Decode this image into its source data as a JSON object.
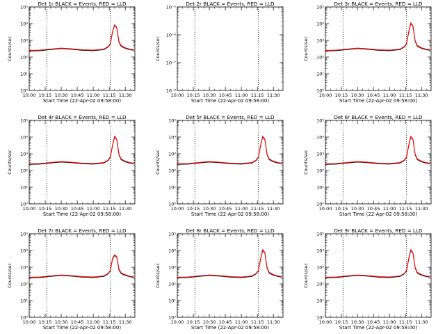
{
  "chart_data": {
    "type": "line",
    "xlabel": "Start Time (22-Apr-02 09:58:00)",
    "ylabel": "Counts/sec",
    "x_tick_labels": [
      "10:00",
      "10:15",
      "10:30",
      "10:45",
      "11:00",
      "11:15",
      "11:30"
    ],
    "x_ticks_minutes": [
      0,
      15,
      30,
      45,
      60,
      75,
      90
    ],
    "xlim_minutes": [
      0,
      99
    ],
    "log_scale_y": true,
    "vertical_markers_minutes": [
      16.5,
      76
    ],
    "colors": {
      "events": "#000000",
      "lld": "#ff0000"
    },
    "panels": [
      {
        "title": "Det 1r BLACK = Events, RED = LLD",
        "ylim_exp": [
          0,
          5
        ],
        "y_tick_labels": [
          "10⁰",
          "10¹",
          "10²",
          "10³",
          "10⁴",
          "10⁵"
        ],
        "series": [
          {
            "name": "Events",
            "x": [
              0,
              10,
              20,
              30,
              40,
              50,
              60,
              70,
              74,
              76,
              78,
              80,
              82,
              84,
              86,
              88,
              90,
              94,
              98
            ],
            "y": [
              230,
              240,
              280,
              320,
              290,
              250,
              240,
              280,
              400,
              600,
              3000,
              8000,
              5500,
              800,
              450,
              380,
              330,
              280,
              250
            ]
          },
          {
            "name": "LLD",
            "x": [
              0,
              10,
              20,
              30,
              40,
              50,
              60,
              70,
              74,
              76,
              78,
              80,
              82,
              84,
              86,
              88,
              90,
              94,
              98
            ],
            "y": [
              250,
              260,
              300,
              340,
              310,
              270,
              260,
              300,
              430,
              650,
              3300,
              8500,
              6000,
              900,
              500,
              420,
              360,
              300,
              270
            ]
          }
        ]
      },
      {
        "title": "Det 2r BLACK = Events, RED = LLD",
        "ylim_exp": [
          -8,
          -5
        ],
        "y_tick_labels": [
          "10⁻⁸",
          "10⁻⁷",
          "10⁻⁶",
          "10⁻⁵"
        ],
        "series": [
          {
            "name": "Events",
            "x": [],
            "y": []
          },
          {
            "name": "LLD",
            "x": [],
            "y": []
          }
        ]
      },
      {
        "title": "Det 3r BLACK = Events, RED = LLD",
        "ylim_exp": [
          0,
          5
        ],
        "y_tick_labels": [
          "10⁰",
          "10¹",
          "10²",
          "10³",
          "10⁴",
          "10⁵"
        ],
        "series": [
          {
            "name": "Events",
            "x": [
              0,
              10,
              20,
              30,
              40,
              50,
              60,
              70,
              74,
              76,
              78,
              80,
              82,
              84,
              86,
              88,
              90,
              94,
              98
            ],
            "y": [
              230,
              240,
              280,
              320,
              290,
              250,
              240,
              280,
              400,
              600,
              3000,
              10000,
              7000,
              900,
              450,
              380,
              330,
              280,
              250
            ]
          },
          {
            "name": "LLD",
            "x": [
              0,
              10,
              20,
              30,
              40,
              50,
              60,
              70,
              74,
              76,
              78,
              80,
              82,
              84,
              86,
              88,
              90,
              94,
              98
            ],
            "y": [
              250,
              260,
              300,
              340,
              310,
              270,
              260,
              300,
              430,
              650,
              3300,
              11000,
              7500,
              1000,
              500,
              420,
              360,
              300,
              270
            ]
          }
        ]
      },
      {
        "title": "Det 4r BLACK = Events, RED = LLD",
        "ylim_exp": [
          0,
          5
        ],
        "y_tick_labels": [
          "10⁰",
          "10¹",
          "10²",
          "10³",
          "10⁴",
          "10⁵"
        ],
        "series": [
          {
            "name": "Events",
            "x": [
              0,
              10,
              20,
              30,
              40,
              50,
              60,
              70,
              74,
              76,
              78,
              80,
              82,
              84,
              86,
              88,
              90,
              94,
              98
            ],
            "y": [
              230,
              240,
              280,
              320,
              290,
              250,
              240,
              280,
              400,
              600,
              3000,
              10000,
              7000,
              900,
              450,
              380,
              330,
              280,
              250
            ]
          },
          {
            "name": "LLD",
            "x": [
              0,
              10,
              20,
              30,
              40,
              50,
              60,
              70,
              74,
              76,
              78,
              80,
              82,
              84,
              86,
              88,
              90,
              94,
              98
            ],
            "y": [
              250,
              260,
              300,
              340,
              310,
              270,
              260,
              300,
              430,
              650,
              3300,
              11000,
              7500,
              1000,
              500,
              420,
              360,
              300,
              270
            ]
          }
        ]
      },
      {
        "title": "Det 5r BLACK = Events, RED = LLD",
        "ylim_exp": [
          0,
          5
        ],
        "y_tick_labels": [
          "10⁰",
          "10¹",
          "10²",
          "10³",
          "10⁴",
          "10⁵"
        ],
        "series": [
          {
            "name": "Events",
            "x": [
              0,
              10,
              20,
              30,
              40,
              50,
              60,
              70,
              74,
              76,
              78,
              80,
              82,
              84,
              86,
              88,
              90,
              94,
              98
            ],
            "y": [
              230,
              240,
              280,
              320,
              290,
              250,
              240,
              280,
              400,
              600,
              3000,
              10000,
              7000,
              900,
              450,
              380,
              330,
              280,
              250
            ]
          },
          {
            "name": "LLD",
            "x": [
              0,
              10,
              20,
              30,
              40,
              50,
              60,
              70,
              74,
              76,
              78,
              80,
              82,
              84,
              86,
              88,
              90,
              94,
              98
            ],
            "y": [
              250,
              260,
              300,
              340,
              310,
              270,
              260,
              300,
              430,
              650,
              3300,
              11000,
              7500,
              1000,
              500,
              420,
              360,
              300,
              270
            ]
          }
        ]
      },
      {
        "title": "Det 6r BLACK = Events, RED = LLD",
        "ylim_exp": [
          0,
          5
        ],
        "y_tick_labels": [
          "10⁰",
          "10¹",
          "10²",
          "10³",
          "10⁴",
          "10⁵"
        ],
        "series": [
          {
            "name": "Events",
            "x": [
              0,
              10,
              20,
              30,
              40,
              50,
              60,
              70,
              74,
              76,
              78,
              80,
              82,
              84,
              86,
              88,
              90,
              94,
              98
            ],
            "y": [
              230,
              240,
              280,
              320,
              290,
              250,
              240,
              280,
              400,
              600,
              3000,
              10000,
              7000,
              900,
              450,
              380,
              330,
              280,
              250
            ]
          },
          {
            "name": "LLD",
            "x": [
              0,
              10,
              20,
              30,
              40,
              50,
              60,
              70,
              74,
              76,
              78,
              80,
              82,
              84,
              86,
              88,
              90,
              94,
              98
            ],
            "y": [
              250,
              260,
              300,
              340,
              310,
              270,
              260,
              300,
              430,
              650,
              3300,
              11000,
              7500,
              1000,
              500,
              420,
              360,
              300,
              270
            ]
          }
        ]
      },
      {
        "title": "Det 7r BLACK = Events, RED = LLD",
        "ylim_exp": [
          0,
          5
        ],
        "y_tick_labels": [
          "10⁰",
          "10¹",
          "10²",
          "10³",
          "10⁴",
          "10⁵"
        ],
        "series": [
          {
            "name": "Events",
            "x": [
              0,
              10,
              20,
              30,
              40,
              50,
              60,
              70,
              74,
              76,
              78,
              80,
              82,
              84,
              86,
              88,
              90,
              94,
              98
            ],
            "y": [
              230,
              240,
              280,
              320,
              290,
              250,
              240,
              280,
              400,
              600,
              3000,
              5000,
              4000,
              700,
              420,
              360,
              320,
              270,
              240
            ]
          },
          {
            "name": "LLD",
            "x": [
              0,
              10,
              20,
              30,
              40,
              50,
              60,
              70,
              74,
              76,
              78,
              80,
              82,
              84,
              86,
              88,
              90,
              94,
              98
            ],
            "y": [
              250,
              260,
              300,
              340,
              310,
              270,
              260,
              300,
              430,
              650,
              3300,
              5500,
              4300,
              800,
              470,
              400,
              350,
              290,
              260
            ]
          }
        ]
      },
      {
        "title": "Det 8r BLACK = Events, RED = LLD",
        "ylim_exp": [
          0,
          5
        ],
        "y_tick_labels": [
          "10⁰",
          "10¹",
          "10²",
          "10³",
          "10⁴",
          "10⁵"
        ],
        "series": [
          {
            "name": "Events",
            "x": [
              0,
              10,
              20,
              30,
              40,
              50,
              60,
              70,
              74,
              76,
              78,
              80,
              82,
              84,
              86,
              88,
              90,
              94,
              98
            ],
            "y": [
              230,
              240,
              280,
              320,
              290,
              250,
              240,
              280,
              400,
              600,
              3000,
              10000,
              7000,
              900,
              450,
              380,
              330,
              280,
              250
            ]
          },
          {
            "name": "LLD",
            "x": [
              0,
              10,
              20,
              30,
              40,
              50,
              60,
              70,
              74,
              76,
              78,
              80,
              82,
              84,
              86,
              88,
              90,
              94,
              98
            ],
            "y": [
              250,
              260,
              300,
              340,
              310,
              270,
              260,
              300,
              430,
              650,
              3300,
              11000,
              7500,
              1000,
              500,
              420,
              360,
              300,
              270
            ]
          }
        ]
      },
      {
        "title": "Det 9r BLACK = Events, RED = LLD",
        "ylim_exp": [
          0,
          5
        ],
        "y_tick_labels": [
          "10⁰",
          "10¹",
          "10²",
          "10³",
          "10⁴",
          "10⁵"
        ],
        "series": [
          {
            "name": "Events",
            "x": [
              0,
              10,
              20,
              30,
              40,
              50,
              60,
              70,
              74,
              76,
              78,
              80,
              82,
              84,
              86,
              88,
              90,
              94,
              98
            ],
            "y": [
              230,
              240,
              280,
              320,
              290,
              250,
              240,
              280,
              400,
              600,
              3000,
              10000,
              7000,
              900,
              450,
              380,
              330,
              280,
              250
            ]
          },
          {
            "name": "LLD",
            "x": [
              0,
              10,
              20,
              30,
              40,
              50,
              60,
              70,
              74,
              76,
              78,
              80,
              82,
              84,
              86,
              88,
              90,
              94,
              98
            ],
            "y": [
              250,
              260,
              300,
              340,
              310,
              270,
              260,
              300,
              430,
              650,
              3300,
              11000,
              7500,
              1000,
              500,
              420,
              360,
              300,
              270
            ]
          }
        ]
      }
    ]
  }
}
